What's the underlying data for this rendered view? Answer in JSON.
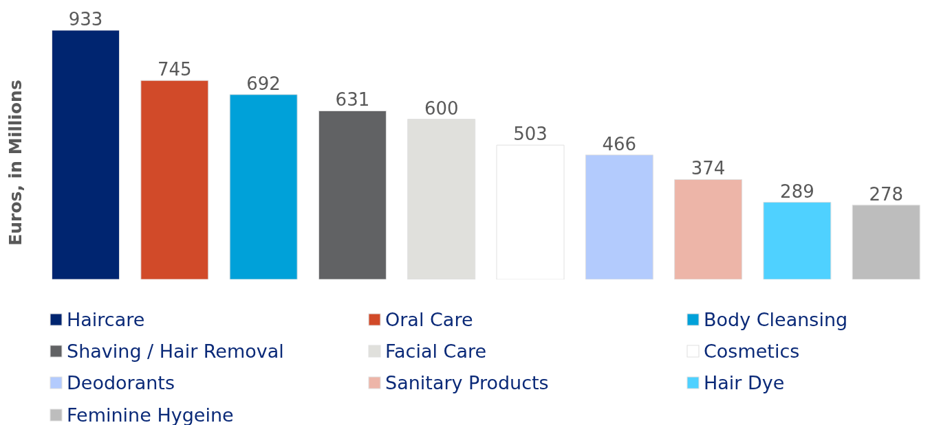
{
  "chart_data": {
    "type": "bar",
    "ylabel": "Euros, in Millions",
    "categories": [
      null,
      null,
      null,
      null,
      null,
      null,
      null,
      null,
      null,
      null
    ],
    "series": [
      {
        "name": "Haircare",
        "color": "#002570",
        "values": [
          933,
          null,
          null,
          null,
          null,
          null,
          null,
          null,
          null,
          null
        ]
      },
      {
        "name": "Oral Care",
        "color": "#d14a29",
        "values": [
          null,
          745,
          null,
          null,
          null,
          null,
          null,
          null,
          null,
          null
        ]
      },
      {
        "name": "Body Cleansing",
        "color": "#00a1d9",
        "values": [
          null,
          null,
          692,
          null,
          null,
          null,
          null,
          null,
          null,
          null
        ]
      },
      {
        "name": "Shaving / Hair Removal",
        "color": "#616264",
        "values": [
          null,
          null,
          null,
          631,
          null,
          null,
          null,
          null,
          null,
          null
        ]
      },
      {
        "name": "Facial Care",
        "color": "#e0e0dc",
        "values": [
          null,
          null,
          null,
          null,
          600,
          null,
          null,
          null,
          null,
          null
        ]
      },
      {
        "name": "Cosmetics",
        "color": "#ffffff",
        "values": [
          null,
          null,
          null,
          null,
          null,
          503,
          null,
          null,
          null,
          null
        ]
      },
      {
        "name": "Deodorants",
        "color": "#b3cbfd",
        "values": [
          null,
          null,
          null,
          null,
          null,
          null,
          466,
          null,
          null,
          null
        ]
      },
      {
        "name": "Sanitary Products",
        "color": "#edb5a8",
        "values": [
          null,
          null,
          null,
          null,
          null,
          null,
          null,
          374,
          null,
          null
        ]
      },
      {
        "name": "Hair Dye",
        "color": "#4fd1ff",
        "values": [
          null,
          null,
          null,
          null,
          null,
          null,
          null,
          null,
          289,
          null
        ]
      },
      {
        "name": "Feminine Hygeine",
        "color": "#bdbdbd",
        "values": [
          null,
          null,
          null,
          null,
          null,
          null,
          null,
          null,
          null,
          278
        ]
      }
    ],
    "stacked": true,
    "data_labels": true,
    "legend": "bottom",
    "tick_labels": false
  }
}
